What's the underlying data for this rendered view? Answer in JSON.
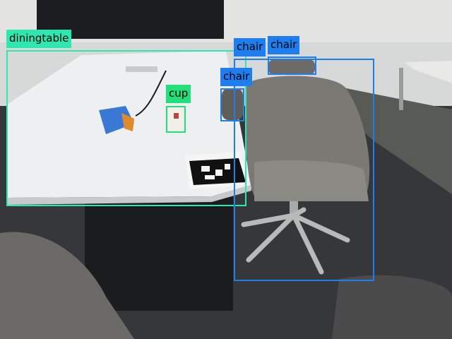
{
  "colors": {
    "diningtable": "#2ee6b0",
    "cup": "#21e07a",
    "chair": "#1e7ef0"
  },
  "detections": [
    {
      "label": "diningtable",
      "color_key": "diningtable"
    },
    {
      "label": "cup",
      "color_key": "cup"
    },
    {
      "label": "chair",
      "color_key": "chair"
    },
    {
      "label": "chair",
      "color_key": "chair"
    },
    {
      "label": "chair",
      "color_key": "chair"
    }
  ]
}
